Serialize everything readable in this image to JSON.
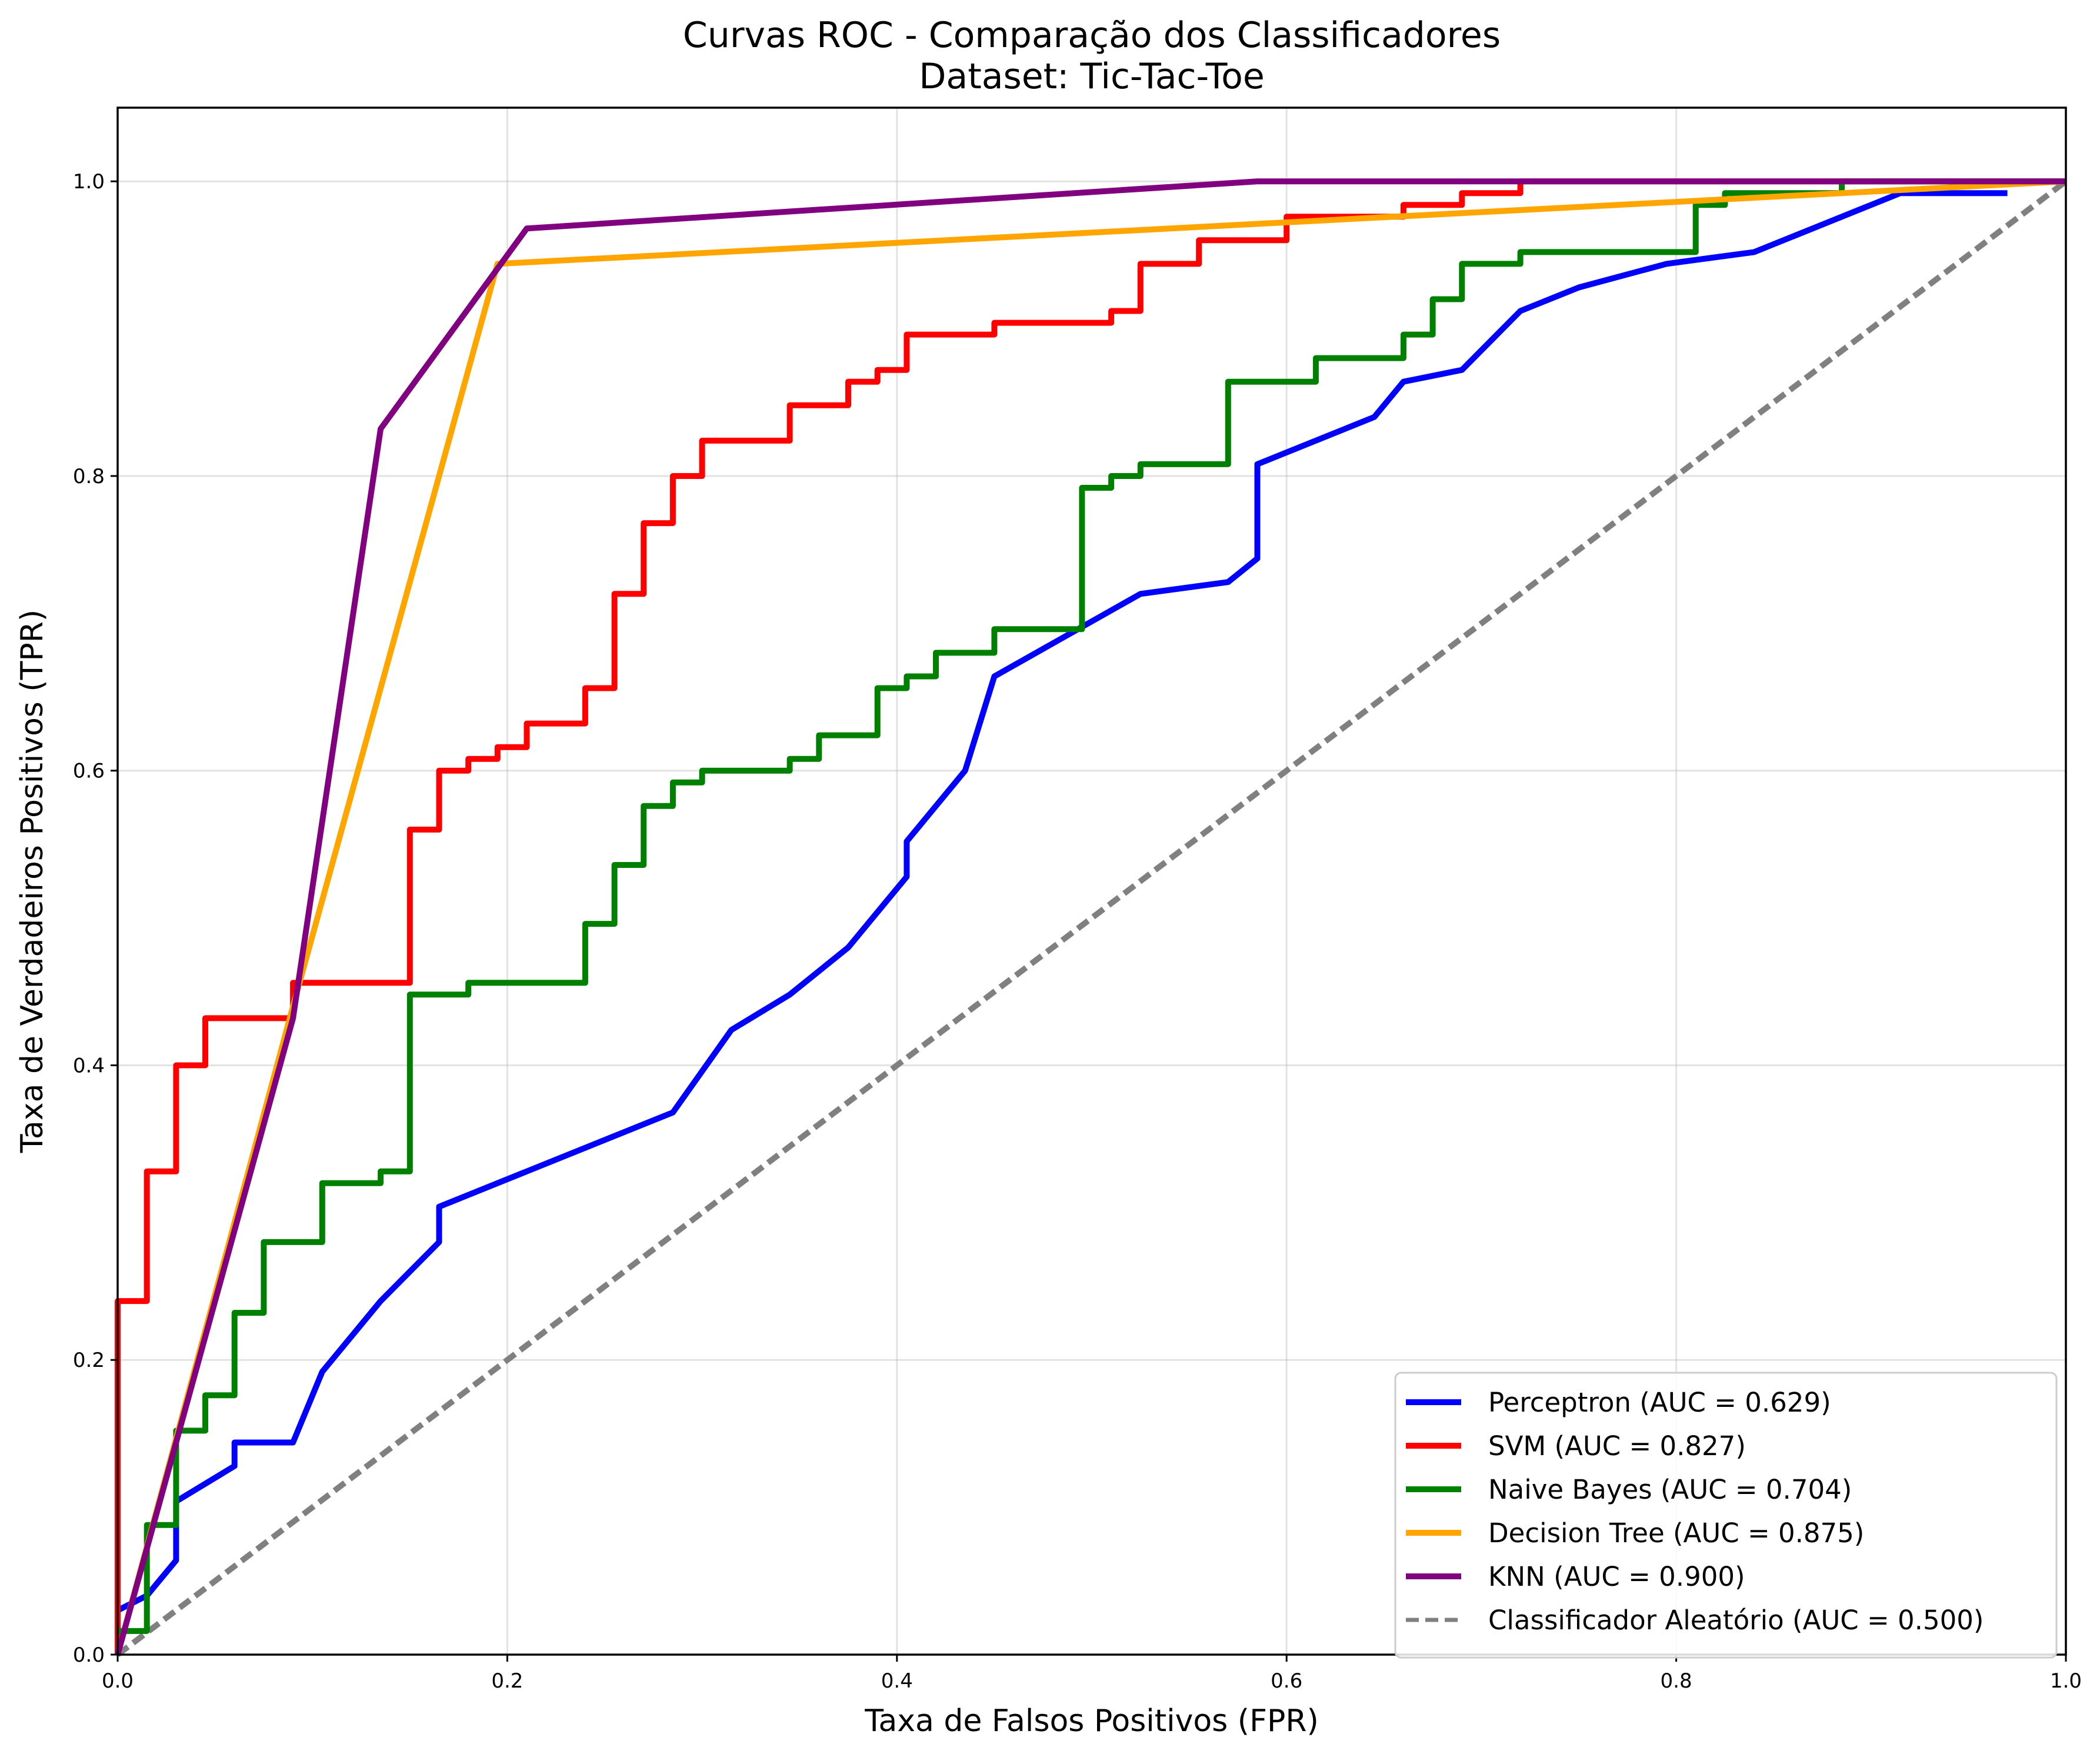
{
  "chart_data": {
    "type": "line",
    "title": [
      "Curvas ROC - Comparação dos Classificadores",
      "Dataset: Tic-Tac-Toe"
    ],
    "xlabel": "Taxa de Falsos Positivos (FPR)",
    "ylabel": "Taxa de Verdadeiros Positivos (TPR)",
    "xlim": [
      0.0,
      1.0
    ],
    "ylim": [
      0.0,
      1.05
    ],
    "xticks": [
      "0.0",
      "0.2",
      "0.4",
      "0.6",
      "0.8",
      "1.0"
    ],
    "yticks": [
      "0.0",
      "0.2",
      "0.4",
      "0.6",
      "0.8",
      "1.0"
    ],
    "grid": true,
    "legend_position": "lower-right",
    "series": [
      {
        "name": "Perceptron (AUC = 0.629)",
        "color": "#0000ff",
        "style": "solid",
        "points": [
          [
            0,
            0.03
          ],
          [
            0.015,
            0.04
          ],
          [
            0.03,
            0.064
          ],
          [
            0.03,
            0.104
          ],
          [
            0.06,
            0.128
          ],
          [
            0.06,
            0.144
          ],
          [
            0.09,
            0.144
          ],
          [
            0.105,
            0.192
          ],
          [
            0.135,
            0.24
          ],
          [
            0.165,
            0.28
          ],
          [
            0.165,
            0.304
          ],
          [
            0.285,
            0.368
          ],
          [
            0.315,
            0.424
          ],
          [
            0.345,
            0.448
          ],
          [
            0.375,
            0.48
          ],
          [
            0.405,
            0.528
          ],
          [
            0.405,
            0.552
          ],
          [
            0.435,
            0.6
          ],
          [
            0.45,
            0.664
          ],
          [
            0.525,
            0.72
          ],
          [
            0.57,
            0.728
          ],
          [
            0.585,
            0.744
          ],
          [
            0.585,
            0.808
          ],
          [
            0.645,
            0.84
          ],
          [
            0.66,
            0.864
          ],
          [
            0.69,
            0.872
          ],
          [
            0.72,
            0.912
          ],
          [
            0.75,
            0.928
          ],
          [
            0.795,
            0.944
          ],
          [
            0.84,
            0.952
          ],
          [
            0.915,
            0.992
          ],
          [
            0.97,
            0.992
          ]
        ]
      },
      {
        "name": "SVM (AUC = 0.827)",
        "color": "#ff0000",
        "style": "solid",
        "points": [
          [
            0,
            0
          ],
          [
            0,
            0.24
          ],
          [
            0.015,
            0.24
          ],
          [
            0.015,
            0.328
          ],
          [
            0.03,
            0.328
          ],
          [
            0.03,
            0.4
          ],
          [
            0.045,
            0.4
          ],
          [
            0.045,
            0.432
          ],
          [
            0.09,
            0.432
          ],
          [
            0.09,
            0.456
          ],
          [
            0.15,
            0.456
          ],
          [
            0.15,
            0.56
          ],
          [
            0.165,
            0.56
          ],
          [
            0.165,
            0.6
          ],
          [
            0.18,
            0.6
          ],
          [
            0.18,
            0.608
          ],
          [
            0.195,
            0.608
          ],
          [
            0.195,
            0.616
          ],
          [
            0.21,
            0.616
          ],
          [
            0.21,
            0.632
          ],
          [
            0.24,
            0.632
          ],
          [
            0.24,
            0.656
          ],
          [
            0.255,
            0.656
          ],
          [
            0.255,
            0.72
          ],
          [
            0.27,
            0.72
          ],
          [
            0.27,
            0.768
          ],
          [
            0.285,
            0.768
          ],
          [
            0.285,
            0.8
          ],
          [
            0.3,
            0.8
          ],
          [
            0.3,
            0.824
          ],
          [
            0.345,
            0.824
          ],
          [
            0.345,
            0.848
          ],
          [
            0.375,
            0.848
          ],
          [
            0.375,
            0.864
          ],
          [
            0.39,
            0.864
          ],
          [
            0.39,
            0.872
          ],
          [
            0.405,
            0.872
          ],
          [
            0.405,
            0.896
          ],
          [
            0.45,
            0.896
          ],
          [
            0.45,
            0.904
          ],
          [
            0.51,
            0.904
          ],
          [
            0.51,
            0.912
          ],
          [
            0.525,
            0.912
          ],
          [
            0.525,
            0.944
          ],
          [
            0.555,
            0.944
          ],
          [
            0.555,
            0.96
          ],
          [
            0.6,
            0.96
          ],
          [
            0.6,
            0.976
          ],
          [
            0.66,
            0.976
          ],
          [
            0.66,
            0.984
          ],
          [
            0.69,
            0.984
          ],
          [
            0.69,
            0.992
          ],
          [
            0.72,
            0.992
          ],
          [
            0.72,
            1.0
          ],
          [
            1.0,
            1.0
          ]
        ]
      },
      {
        "name": "Naive Bayes (AUC = 0.704)",
        "color": "#008000",
        "style": "solid",
        "points": [
          [
            0,
            0.016
          ],
          [
            0.015,
            0.016
          ],
          [
            0.015,
            0.088
          ],
          [
            0.03,
            0.088
          ],
          [
            0.03,
            0.152
          ],
          [
            0.045,
            0.152
          ],
          [
            0.045,
            0.176
          ],
          [
            0.06,
            0.176
          ],
          [
            0.06,
            0.232
          ],
          [
            0.075,
            0.232
          ],
          [
            0.075,
            0.28
          ],
          [
            0.105,
            0.28
          ],
          [
            0.105,
            0.32
          ],
          [
            0.135,
            0.32
          ],
          [
            0.135,
            0.328
          ],
          [
            0.15,
            0.328
          ],
          [
            0.15,
            0.448
          ],
          [
            0.18,
            0.448
          ],
          [
            0.18,
            0.456
          ],
          [
            0.24,
            0.456
          ],
          [
            0.24,
            0.496
          ],
          [
            0.255,
            0.496
          ],
          [
            0.255,
            0.536
          ],
          [
            0.27,
            0.536
          ],
          [
            0.27,
            0.576
          ],
          [
            0.285,
            0.576
          ],
          [
            0.285,
            0.592
          ],
          [
            0.3,
            0.592
          ],
          [
            0.3,
            0.6
          ],
          [
            0.345,
            0.6
          ],
          [
            0.345,
            0.608
          ],
          [
            0.36,
            0.608
          ],
          [
            0.36,
            0.624
          ],
          [
            0.39,
            0.624
          ],
          [
            0.39,
            0.656
          ],
          [
            0.405,
            0.656
          ],
          [
            0.405,
            0.664
          ],
          [
            0.42,
            0.664
          ],
          [
            0.42,
            0.68
          ],
          [
            0.45,
            0.68
          ],
          [
            0.45,
            0.696
          ],
          [
            0.495,
            0.696
          ],
          [
            0.495,
            0.792
          ],
          [
            0.51,
            0.792
          ],
          [
            0.51,
            0.8
          ],
          [
            0.525,
            0.8
          ],
          [
            0.525,
            0.808
          ],
          [
            0.57,
            0.808
          ],
          [
            0.57,
            0.864
          ],
          [
            0.615,
            0.864
          ],
          [
            0.615,
            0.88
          ],
          [
            0.66,
            0.88
          ],
          [
            0.66,
            0.896
          ],
          [
            0.675,
            0.896
          ],
          [
            0.675,
            0.92
          ],
          [
            0.69,
            0.92
          ],
          [
            0.69,
            0.944
          ],
          [
            0.72,
            0.944
          ],
          [
            0.72,
            0.952
          ],
          [
            0.81,
            0.952
          ],
          [
            0.81,
            0.984
          ],
          [
            0.825,
            0.984
          ],
          [
            0.825,
            0.992
          ],
          [
            0.885,
            0.992
          ],
          [
            0.885,
            1.0
          ],
          [
            1.0,
            1.0
          ]
        ]
      },
      {
        "name": "Decision Tree (AUC = 0.875)",
        "color": "#ffa500",
        "style": "solid",
        "points": [
          [
            0,
            0
          ],
          [
            0.09,
            0.44
          ],
          [
            0.195,
            0.944
          ],
          [
            1.0,
            1.0
          ]
        ]
      },
      {
        "name": "KNN (AUC = 0.900)",
        "color": "#800080",
        "style": "solid",
        "points": [
          [
            0,
            0
          ],
          [
            0.09,
            0.432
          ],
          [
            0.135,
            0.832
          ],
          [
            0.21,
            0.968
          ],
          [
            0.585,
            1.0
          ],
          [
            1.0,
            1.0
          ]
        ]
      },
      {
        "name": "Classificador Aleatório (AUC = 0.500)",
        "color": "#808080",
        "style": "dashed",
        "points": [
          [
            0,
            0
          ],
          [
            1.0,
            1.0
          ]
        ]
      }
    ]
  }
}
